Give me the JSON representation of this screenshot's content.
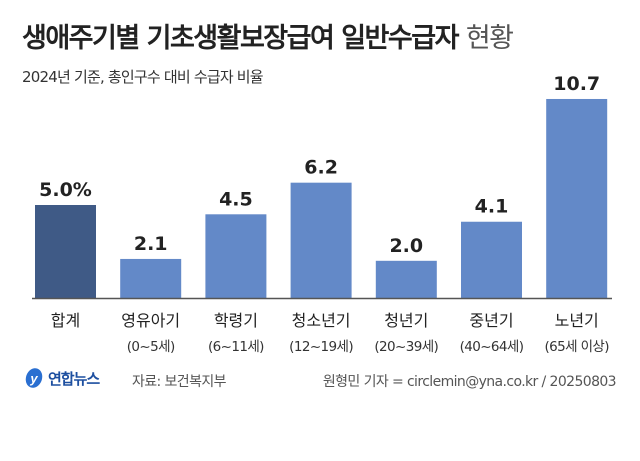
{
  "header": {
    "title_bold": "생애주기별 기초생활보장급여 일반수급자",
    "title_light": "현황",
    "subtitle": "2024년 기준, 총인구수 대비 수급자 비율"
  },
  "chart_data": {
    "type": "bar",
    "title": "생애주기별 기초생활보장급여 일반수급자 현황",
    "subtitle": "2024년 기준, 총인구수 대비 수급자 비율",
    "unit": "%",
    "categories": [
      "합계",
      "영유아기",
      "학령기",
      "청소년기",
      "청년기",
      "중년기",
      "노년기"
    ],
    "sublabels": [
      "",
      "(0~5세)",
      "(6~11세)",
      "(12~19세)",
      "(20~39세)",
      "(40~64세)",
      "(65세 이상)"
    ],
    "values": [
      5.0,
      2.1,
      4.5,
      6.2,
      2.0,
      4.1,
      10.7
    ],
    "value_labels": [
      "5.0%",
      "2.1",
      "4.5",
      "6.2",
      "2.0",
      "4.1",
      "10.7"
    ],
    "ylim": [
      0,
      11
    ],
    "grid": false,
    "colors": {
      "total": "#3f5a86",
      "bars": "#6389c8",
      "axis": "#555555"
    }
  },
  "footer": {
    "logo": "연합뉴스",
    "source": "자료: 보건복지부",
    "credit": "원형민 기자 = circlemin@yna.co.kr / 20250803"
  }
}
